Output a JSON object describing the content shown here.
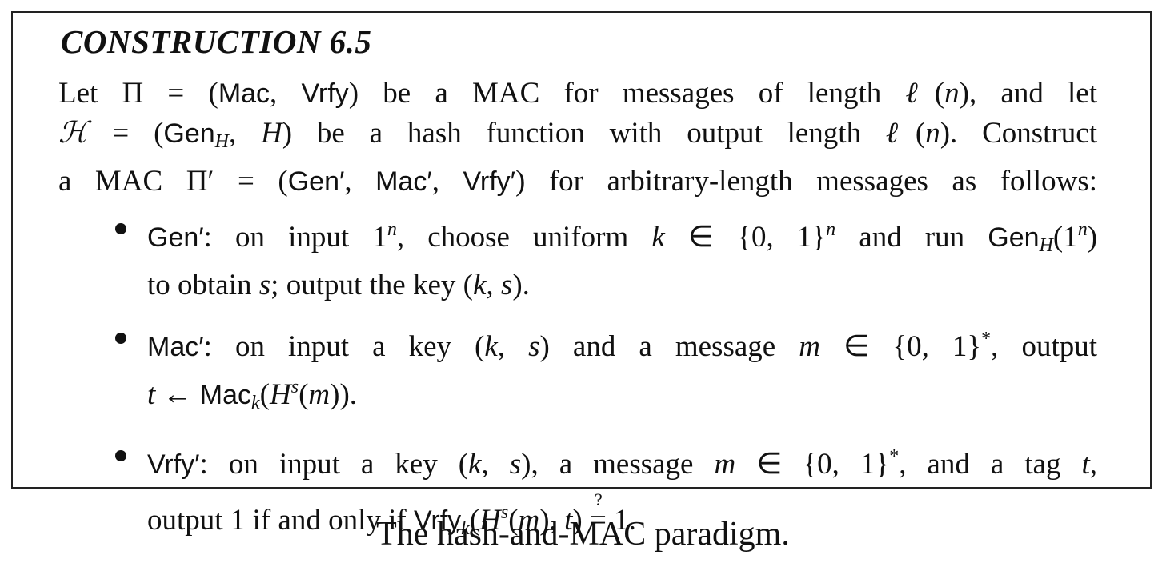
{
  "box": {
    "title": "CONSTRUCTION 6.5",
    "intro": {
      "l1": {
        "a": "Let Π = (",
        "mac": "Mac",
        "b": ", ",
        "vrfy": "Vrfy",
        "c": ") be a MAC for messages of length ",
        "ell": "ℓ",
        "d": "(",
        "n": "n",
        "e": "), and let"
      },
      "l2": {
        "H": "ℋ",
        "a": " = (",
        "gen": "Gen",
        "gen_sub": "H",
        "b": ", ",
        "Hf": "H",
        "c": ") be a hash function with output length ",
        "ell": "ℓ",
        "d": "(",
        "n": "n",
        "e": "). Construct"
      },
      "l3": {
        "a": "a MAC Π′ = (",
        "gen": "Gen′",
        "b": ", ",
        "mac": "Mac′",
        "c": ", ",
        "vrfy": "Vrfy′",
        "d": ") for arbitrary-length messages as follows:"
      }
    },
    "bullets": {
      "gen": {
        "name": "Gen′",
        "t1": ": on input 1",
        "n1": "n",
        "t2": ", choose uniform ",
        "k": "k",
        "t3": " ∈ {0, 1}",
        "n2": "n",
        "t4": " and run ",
        "gen": "Gen",
        "gen_sub": "H",
        "t5": "(1",
        "n3": "n",
        "t6": ")",
        "t7": "to obtain ",
        "s": "s",
        "t8": "; output the key (",
        "k2": "k",
        "t9": ", ",
        "s2": "s",
        "t10": ")."
      },
      "mac": {
        "name": "Mac′",
        "t1": ": on input a key (",
        "k": "k",
        "t2": ", ",
        "s": "s",
        "t3": ") and a message ",
        "m": "m",
        "t4": " ∈ {0, 1}",
        "star": "*",
        "t5": ", output",
        "t": "t",
        "t6": " ← ",
        "macf": "Mac",
        "macf_sub": "k",
        "t7": "(",
        "H": "H",
        "H_sup": "s",
        "t8": "(",
        "m2": "m",
        "t9": "))."
      },
      "vrfy": {
        "name": "Vrfy′",
        "t1": ": on input a key (",
        "k": "k",
        "t2": ", ",
        "s": "s",
        "t3": "), a message ",
        "m": "m",
        "t4": " ∈ {0, 1}",
        "star": "*",
        "t5": ", and a tag ",
        "t": "t",
        "t6": ",",
        "t7": "output 1 if and only if ",
        "vrfyf": "Vrfy",
        "vrfyf_sub": "k",
        "t8": "(",
        "H": "H",
        "H_sup": "s",
        "t9": "(",
        "m2": "m",
        "t10": "), ",
        "t2v": "t",
        "t11": ") ",
        "q": "?",
        "eq": "=",
        "t12": " 1."
      }
    }
  },
  "caption": "The hash-and-MAC paradigm."
}
